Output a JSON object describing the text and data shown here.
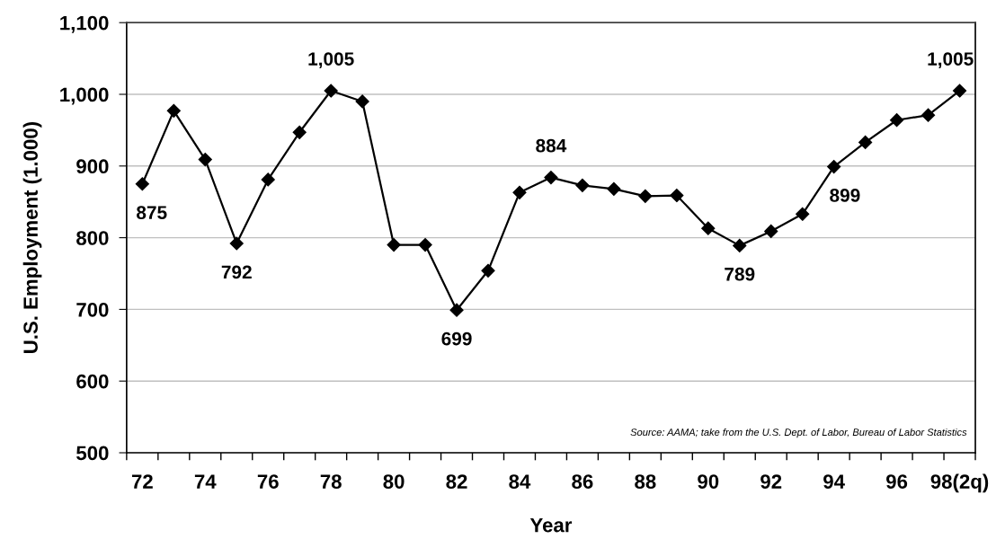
{
  "chart_data": {
    "type": "line",
    "xlabel": "Year",
    "ylabel": "U.S. Employment (1.000)",
    "categories": [
      "72",
      null,
      "74",
      null,
      "76",
      null,
      "78",
      null,
      "80",
      null,
      "82",
      null,
      "84",
      null,
      "86",
      null,
      "88",
      null,
      "90",
      null,
      "92",
      null,
      "94",
      null,
      "96",
      null,
      "98(2q)"
    ],
    "series": [
      {
        "color": "#000000",
        "values": [
          875,
          977,
          909,
          792,
          881,
          947,
          1005,
          990,
          790,
          790,
          699,
          754,
          863,
          884,
          873,
          868,
          858,
          859,
          813,
          789,
          809,
          833,
          899,
          933,
          964,
          971,
          1005
        ],
        "value_labels": [
          "875",
          null,
          null,
          "792",
          null,
          null,
          "1,005",
          null,
          null,
          null,
          "699",
          null,
          null,
          "884",
          null,
          null,
          null,
          null,
          null,
          "789",
          null,
          null,
          "899",
          null,
          null,
          null,
          "1,005"
        ]
      }
    ],
    "ylim": [
      500,
      1100
    ],
    "yticks": [
      500,
      600,
      700,
      800,
      900,
      {
        "value": 1000,
        "label": "1,000"
      },
      {
        "value": 1100,
        "label": "1,100"
      }
    ],
    "grid": "y",
    "marker": "diamond",
    "line_style": "solid",
    "annotations": [
      "Source: AAMA; take from the U.S. Dept. of Labor, Bureau of Labor Statistics"
    ]
  }
}
